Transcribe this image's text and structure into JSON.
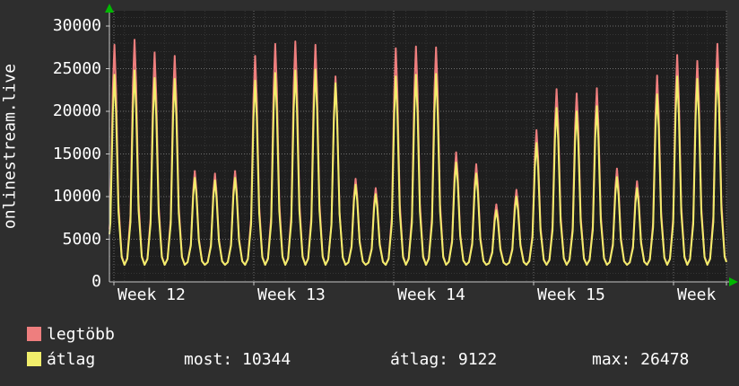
{
  "chart_data": {
    "type": "line",
    "title": "onlinestream.live",
    "ylabel": "onlinestream.live",
    "xlabel": "",
    "ylim": [
      0,
      31800
    ],
    "grid": true,
    "legend_position": "bottom",
    "y_ticks": [
      0,
      5000,
      10000,
      15000,
      20000,
      25000,
      30000
    ],
    "y_tick_labels": [
      "30000",
      "25000",
      "20000",
      "15000",
      "10000",
      "5000",
      "0"
    ],
    "x_tick_labels": [
      "Week 12",
      "Week 13",
      "Week 14",
      "Week 15",
      "Week"
    ],
    "days_visible": 30.7,
    "start_offset_days": 0.25,
    "daily_low": 2000,
    "series": [
      {
        "name": "legtöbb",
        "color": "#ee7e7e",
        "daily_peaks": [
          27800,
          28400,
          26900,
          26500,
          13000,
          12700,
          13000,
          26500,
          27900,
          28200,
          27800,
          24100,
          12100,
          11000,
          27400,
          27600,
          27500,
          15200,
          13800,
          9100,
          10800,
          17800,
          22600,
          22100,
          22700,
          13300,
          11800,
          24200,
          26600,
          25900,
          27900
        ]
      },
      {
        "name": "átlag",
        "color": "#f1ee6b",
        "daily_peaks": [
          24300,
          24800,
          23900,
          23800,
          12200,
          11900,
          12200,
          23600,
          24500,
          24800,
          24900,
          23300,
          11400,
          10300,
          24100,
          24300,
          24400,
          14000,
          12700,
          8400,
          10000,
          16300,
          20400,
          20000,
          20600,
          12300,
          11000,
          22000,
          24100,
          23800,
          25000
        ]
      }
    ],
    "stats": {
      "most": 10344,
      "atlag": 9122,
      "max": 26478
    }
  },
  "legend": {
    "rows": [
      {
        "label": "legtöbb"
      },
      {
        "label": "átlag"
      }
    ],
    "stats": [
      {
        "text": "most: 10344"
      },
      {
        "text": "átlag: 9122"
      },
      {
        "text": "max: 26478"
      }
    ]
  },
  "colors": {
    "background": "#2e2e2e",
    "plot_background": "#1e1e1e",
    "grid_minor": "#363636",
    "grid_major": "#6e6e6e",
    "axis": "#c8c8c8",
    "arrow": "#00b900",
    "text": "#ffffff"
  }
}
